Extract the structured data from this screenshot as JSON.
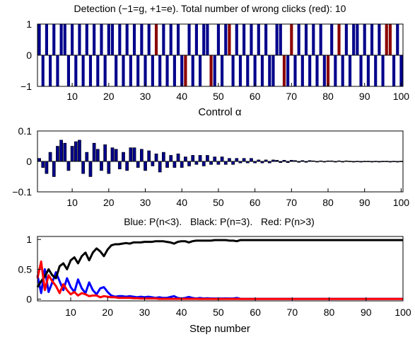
{
  "colors": {
    "blue": "#00008B",
    "red": "#8B0000",
    "line_blue": "#0000FF",
    "line_red": "#FF0000",
    "line_black": "#000000"
  },
  "chart_data": [
    {
      "type": "bar",
      "title": "Detection (−1=g, +1=e). Total number of wrong clicks (red): 10",
      "xlabel": "Control α",
      "ylabel": "",
      "xlim": [
        0.5,
        100.5
      ],
      "ylim": [
        -1,
        1
      ],
      "xticks": [
        10,
        20,
        30,
        40,
        50,
        60,
        70,
        80,
        90,
        100
      ],
      "yticks": [
        -1,
        0,
        1
      ],
      "x": [
        1,
        2,
        3,
        4,
        5,
        6,
        7,
        8,
        9,
        10,
        11,
        12,
        13,
        14,
        15,
        16,
        17,
        18,
        19,
        20,
        21,
        22,
        23,
        24,
        25,
        26,
        27,
        28,
        29,
        30,
        31,
        32,
        33,
        34,
        35,
        36,
        37,
        38,
        39,
        40,
        41,
        42,
        43,
        44,
        45,
        46,
        47,
        48,
        49,
        50,
        51,
        52,
        53,
        54,
        55,
        56,
        57,
        58,
        59,
        60,
        61,
        62,
        63,
        64,
        65,
        66,
        67,
        68,
        69,
        70,
        71,
        72,
        73,
        74,
        75,
        76,
        77,
        78,
        79,
        80,
        81,
        82,
        83,
        84,
        85,
        86,
        87,
        88,
        89,
        90,
        91,
        92,
        93,
        94,
        95,
        96,
        97,
        98,
        99,
        100
      ],
      "values": [
        1,
        -1,
        1,
        -1,
        1,
        -1,
        1,
        1,
        -1,
        1,
        -1,
        1,
        -1,
        1,
        -1,
        1,
        -1,
        1,
        -1,
        1,
        1,
        -1,
        1,
        -1,
        1,
        -1,
        1,
        -1,
        1,
        -1,
        1,
        -1,
        1,
        -1,
        1,
        -1,
        1,
        -1,
        1,
        -1,
        -1,
        1,
        -1,
        1,
        -1,
        1,
        1,
        -1,
        -1,
        1,
        -1,
        1,
        1,
        -1,
        1,
        -1,
        1,
        -1,
        1,
        -1,
        1,
        -1,
        1,
        -1,
        -1,
        1,
        1,
        -1,
        -1,
        1,
        -1,
        1,
        -1,
        1,
        -1,
        1,
        -1,
        1,
        -1,
        -1,
        1,
        -1,
        1,
        -1,
        1,
        -1,
        1,
        1,
        -1,
        1,
        -1,
        1,
        -1,
        1,
        -1,
        1,
        1,
        -1,
        1,
        -1
      ],
      "wrong_clicks_red": [
        33,
        41,
        48,
        53,
        68,
        70,
        80,
        83,
        96,
        97
      ],
      "wrong_clicks_total": 10
    },
    {
      "type": "bar",
      "title": "",
      "xlabel": "",
      "ylabel": "",
      "xlim": [
        0.5,
        100.5
      ],
      "ylim": [
        -0.1,
        0.1
      ],
      "xticks": [
        10,
        20,
        30,
        40,
        50,
        60,
        70,
        80,
        90,
        100
      ],
      "yticks": [
        -0.1,
        0,
        0.1
      ],
      "ytick_labels": [
        "−0.1",
        "0",
        "0.1"
      ],
      "x": [
        1,
        2,
        3,
        4,
        5,
        6,
        7,
        8,
        9,
        10,
        11,
        12,
        13,
        14,
        15,
        16,
        17,
        18,
        19,
        20,
        21,
        22,
        23,
        24,
        25,
        26,
        27,
        28,
        29,
        30,
        31,
        32,
        33,
        34,
        35,
        36,
        37,
        38,
        39,
        40,
        41,
        42,
        43,
        44,
        45,
        46,
        47,
        48,
        49,
        50,
        51,
        52,
        53,
        54,
        55,
        56,
        57,
        58,
        59,
        60,
        61,
        62,
        63,
        64,
        65,
        66,
        67,
        68,
        69,
        70,
        71,
        72,
        73,
        74,
        75,
        76,
        77,
        78,
        79,
        80,
        81,
        82,
        83,
        84,
        85,
        86,
        87,
        88,
        89,
        90,
        91,
        92,
        93,
        94,
        95,
        96,
        97,
        98,
        99,
        100
      ],
      "values": [
        0.01,
        -0.02,
        -0.04,
        0.03,
        -0.05,
        0.05,
        0.07,
        0.06,
        -0.03,
        0.05,
        0.065,
        0.07,
        -0.04,
        0.03,
        -0.05,
        0.06,
        0.04,
        -0.03,
        0.055,
        -0.04,
        0.045,
        0.04,
        -0.025,
        0.03,
        -0.03,
        0.045,
        0.045,
        -0.02,
        0.04,
        -0.03,
        0.035,
        -0.015,
        0.025,
        -0.035,
        0.03,
        -0.02,
        0.02,
        -0.02,
        0.025,
        -0.02,
        0.015,
        -0.015,
        0.02,
        -0.01,
        0.02,
        -0.015,
        0.02,
        -0.01,
        0.015,
        -0.01,
        0.015,
        -0.01,
        0.01,
        -0.01,
        0.01,
        -0.005,
        0.01,
        -0.005,
        0.01,
        -0.005,
        0.005,
        -0.005,
        0.005,
        -0.005,
        0.005,
        0.004,
        -0.004,
        0.004,
        -0.004,
        0.004,
        0.003,
        -0.003,
        0.003,
        -0.003,
        0.003,
        0.002,
        -0.002,
        0.002,
        -0.002,
        0.002,
        0.002,
        -0.002,
        0.002,
        -0.002,
        0.002,
        0.001,
        -0.001,
        0.001,
        -0.001,
        0.001,
        0.001,
        -0.001,
        0.001,
        -0.001,
        0.001,
        0.001,
        -0.001,
        0.001,
        -0.001,
        0.001
      ]
    },
    {
      "type": "line",
      "title": "Blue: P(n<3).   Black: P(n=3).   Red: P(n>3)",
      "xlabel": "Step number",
      "ylabel": "",
      "xlim": [
        1,
        100
      ],
      "ylim": [
        -0.03,
        1.05
      ],
      "xticks": [
        10,
        20,
        30,
        40,
        50,
        60,
        70,
        80,
        90,
        100
      ],
      "yticks": [
        0,
        0.5,
        1
      ],
      "x": [
        1,
        2,
        3,
        4,
        5,
        6,
        7,
        8,
        9,
        10,
        11,
        12,
        13,
        14,
        15,
        16,
        17,
        18,
        19,
        20,
        21,
        22,
        23,
        24,
        25,
        26,
        27,
        28,
        29,
        30,
        31,
        32,
        33,
        34,
        35,
        36,
        37,
        38,
        39,
        40,
        41,
        42,
        43,
        44,
        45,
        46,
        47,
        48,
        49,
        50,
        51,
        52,
        53,
        54,
        55,
        56,
        57,
        58,
        59,
        60,
        61,
        62,
        63,
        64,
        65,
        66,
        67,
        68,
        69,
        70,
        71,
        72,
        73,
        74,
        75,
        76,
        77,
        78,
        79,
        80,
        81,
        82,
        83,
        84,
        85,
        86,
        87,
        88,
        89,
        90,
        91,
        92,
        93,
        94,
        95,
        96,
        97,
        98,
        99,
        100
      ],
      "series": [
        {
          "color": "line_blue",
          "values": [
            0.4,
            0.1,
            0.5,
            0.12,
            0.28,
            0.45,
            0.3,
            0.15,
            0.35,
            0.2,
            0.12,
            0.33,
            0.18,
            0.1,
            0.28,
            0.15,
            0.08,
            0.18,
            0.2,
            0.12,
            0.06,
            0.04,
            0.05,
            0.05,
            0.04,
            0.05,
            0.04,
            0.03,
            0.04,
            0.03,
            0.04,
            0.03,
            0.02,
            0.03,
            0.02,
            0.02,
            0.035,
            0.05,
            0.02,
            0.01,
            0.02,
            0.035,
            0.02,
            0.01,
            0.02,
            0.01,
            0.015,
            0.01,
            0.01,
            0.01,
            0.01,
            0.012,
            0.01,
            0.01,
            0.02,
            0.005,
            0.005,
            0.005,
            0.005,
            0.005,
            0.005,
            0.005,
            0.005,
            0.005,
            0.005,
            0.005,
            0.005,
            0.005,
            0.005,
            0.005,
            0.005,
            0.005,
            0.005,
            0.005,
            0.005,
            0.005,
            0.005,
            0.005,
            0.005,
            0.005,
            0.005,
            0.005,
            0.005,
            0.005,
            0.005,
            0.005,
            0.005,
            0.005,
            0.005,
            0.005,
            0.005,
            0.005,
            0.005,
            0.005,
            0.005,
            0.005,
            0.005,
            0.005,
            0.005,
            0.005
          ]
        },
        {
          "color": "line_black",
          "values": [
            0.2,
            0.3,
            0.38,
            0.5,
            0.4,
            0.35,
            0.55,
            0.6,
            0.5,
            0.65,
            0.7,
            0.6,
            0.72,
            0.78,
            0.65,
            0.78,
            0.85,
            0.8,
            0.72,
            0.83,
            0.9,
            0.92,
            0.92,
            0.93,
            0.94,
            0.93,
            0.95,
            0.95,
            0.95,
            0.96,
            0.96,
            0.96,
            0.97,
            0.97,
            0.97,
            0.96,
            0.95,
            0.93,
            0.96,
            0.97,
            0.97,
            0.95,
            0.97,
            0.98,
            0.98,
            0.98,
            0.98,
            0.98,
            0.99,
            0.99,
            0.99,
            0.99,
            0.98,
            0.98,
            0.97,
            0.99,
            0.99,
            0.99,
            0.99,
            0.99,
            0.99,
            0.99,
            0.99,
            0.99,
            0.99,
            0.99,
            0.99,
            0.99,
            0.99,
            0.99,
            0.99,
            0.99,
            0.99,
            0.99,
            0.99,
            0.99,
            0.99,
            0.99,
            0.99,
            0.99,
            0.99,
            0.99,
            0.99,
            0.99,
            0.99,
            0.99,
            0.99,
            0.99,
            0.99,
            0.99,
            0.99,
            0.99,
            0.99,
            0.99,
            0.99,
            0.99,
            0.99,
            0.99,
            0.99,
            0.99
          ]
        },
        {
          "color": "line_red",
          "values": [
            0.35,
            0.63,
            0.15,
            0.4,
            0.3,
            0.22,
            0.1,
            0.25,
            0.15,
            0.08,
            0.12,
            0.06,
            0.1,
            0.08,
            0.05,
            0.06,
            0.06,
            0.03,
            0.05,
            0.04,
            0.03,
            0.03,
            0.02,
            0.02,
            0.02,
            0.02,
            0.015,
            0.015,
            0.01,
            0.01,
            0.01,
            0.01,
            0.01,
            0.005,
            0.005,
            0.005,
            0.005,
            0.005,
            0.005,
            0.005,
            0.005,
            0.005,
            0.005,
            0.005,
            0.003,
            0.003,
            0.003,
            0.003,
            0.003,
            0.003,
            0.003,
            0.003,
            0.003,
            0.003,
            0.003,
            0.002,
            0.002,
            0.002,
            0.002,
            0.002,
            0.002,
            0.002,
            0.002,
            0.002,
            0.002,
            0.002,
            0.002,
            0.002,
            0.002,
            0.002,
            0.002,
            0.002,
            0.002,
            0.002,
            0.002,
            0.002,
            0.002,
            0.002,
            0.002,
            0.002,
            0.002,
            0.002,
            0.002,
            0.002,
            0.002,
            0.002,
            0.002,
            0.002,
            0.002,
            0.002,
            0.002,
            0.002,
            0.002,
            0.002,
            0.002,
            0.002,
            0.002,
            0.002,
            0.002,
            0.002
          ]
        }
      ]
    }
  ]
}
